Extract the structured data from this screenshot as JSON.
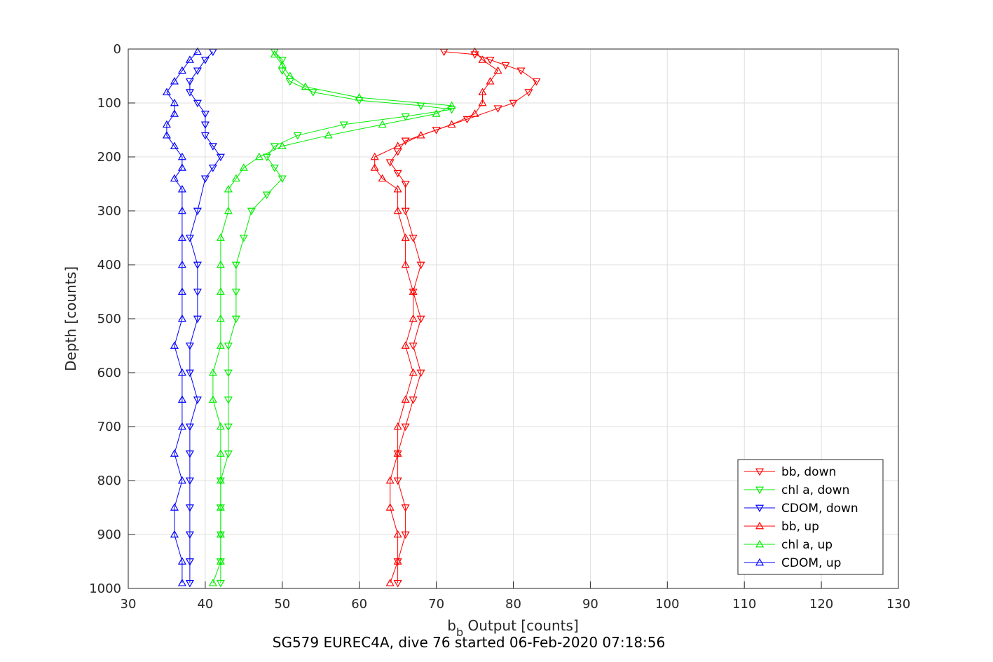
{
  "chart_data": {
    "type": "line",
    "title": "",
    "caption": "SG579 EUREC4A, dive 76 started 06-Feb-2020 07:18:56",
    "xlabel_main": "b",
    "xlabel_sub": "b",
    "xlabel_rest": " Output [counts]",
    "ylabel": "Depth [counts]",
    "xlim": [
      30,
      130
    ],
    "ylim": [
      0,
      1000
    ],
    "y_reversed": true,
    "xticks": [
      30,
      40,
      50,
      60,
      70,
      80,
      90,
      100,
      110,
      120,
      130
    ],
    "yticks": [
      0,
      100,
      200,
      300,
      400,
      500,
      600,
      700,
      800,
      900,
      1000
    ],
    "grid": true,
    "legend_position": "bottom-right",
    "colors": {
      "red": "#ff0000",
      "green": "#00ee00",
      "blue": "#0000ff"
    },
    "series": [
      {
        "name": "bb, down",
        "color": "#ff0000",
        "marker": "triangle-down",
        "points": [
          [
            71,
            5
          ],
          [
            75,
            10
          ],
          [
            77,
            20
          ],
          [
            79,
            30
          ],
          [
            81,
            40
          ],
          [
            83,
            60
          ],
          [
            82,
            80
          ],
          [
            80,
            100
          ],
          [
            78,
            110
          ],
          [
            74,
            130
          ],
          [
            70,
            150
          ],
          [
            66,
            170
          ],
          [
            65,
            190
          ],
          [
            64,
            210
          ],
          [
            65,
            230
          ],
          [
            66,
            250
          ],
          [
            66,
            300
          ],
          [
            67,
            350
          ],
          [
            68,
            400
          ],
          [
            67,
            450
          ],
          [
            68,
            500
          ],
          [
            67,
            550
          ],
          [
            68,
            600
          ],
          [
            67,
            650
          ],
          [
            66,
            700
          ],
          [
            65,
            750
          ],
          [
            65,
            800
          ],
          [
            66,
            850
          ],
          [
            66,
            900
          ],
          [
            65,
            950
          ],
          [
            65,
            990
          ]
        ]
      },
      {
        "name": "chl a, down",
        "color": "#00ee00",
        "marker": "triangle-down",
        "points": [
          [
            49,
            5
          ],
          [
            50,
            20
          ],
          [
            50,
            40
          ],
          [
            51,
            60
          ],
          [
            54,
            80
          ],
          [
            60,
            95
          ],
          [
            68,
            105
          ],
          [
            72,
            112
          ],
          [
            66,
            125
          ],
          [
            58,
            140
          ],
          [
            52,
            160
          ],
          [
            49,
            180
          ],
          [
            48,
            200
          ],
          [
            49,
            220
          ],
          [
            50,
            240
          ],
          [
            48,
            270
          ],
          [
            46,
            300
          ],
          [
            45,
            350
          ],
          [
            44,
            400
          ],
          [
            44,
            450
          ],
          [
            44,
            500
          ],
          [
            43,
            550
          ],
          [
            43,
            600
          ],
          [
            43,
            650
          ],
          [
            43,
            700
          ],
          [
            43,
            750
          ],
          [
            42,
            800
          ],
          [
            42,
            850
          ],
          [
            42,
            900
          ],
          [
            42,
            950
          ],
          [
            42,
            990
          ]
        ]
      },
      {
        "name": "CDOM, down",
        "color": "#0000ff",
        "marker": "triangle-down",
        "points": [
          [
            41,
            5
          ],
          [
            40,
            20
          ],
          [
            39,
            40
          ],
          [
            38,
            60
          ],
          [
            38,
            80
          ],
          [
            39,
            100
          ],
          [
            40,
            120
          ],
          [
            40,
            140
          ],
          [
            40,
            160
          ],
          [
            41,
            180
          ],
          [
            42,
            200
          ],
          [
            41,
            220
          ],
          [
            40,
            240
          ],
          [
            39,
            300
          ],
          [
            38,
            350
          ],
          [
            39,
            400
          ],
          [
            39,
            450
          ],
          [
            39,
            500
          ],
          [
            38,
            550
          ],
          [
            38,
            600
          ],
          [
            39,
            650
          ],
          [
            38,
            700
          ],
          [
            38,
            750
          ],
          [
            38,
            800
          ],
          [
            38,
            850
          ],
          [
            38,
            900
          ],
          [
            38,
            950
          ],
          [
            38,
            990
          ]
        ]
      },
      {
        "name": "bb, up",
        "color": "#ff0000",
        "marker": "triangle-up",
        "points": [
          [
            64,
            990
          ],
          [
            65,
            950
          ],
          [
            65,
            900
          ],
          [
            64,
            850
          ],
          [
            64,
            800
          ],
          [
            65,
            750
          ],
          [
            65,
            700
          ],
          [
            66,
            650
          ],
          [
            67,
            600
          ],
          [
            66,
            550
          ],
          [
            67,
            500
          ],
          [
            67,
            450
          ],
          [
            66,
            400
          ],
          [
            66,
            350
          ],
          [
            65,
            300
          ],
          [
            65,
            260
          ],
          [
            63,
            240
          ],
          [
            62,
            220
          ],
          [
            62,
            200
          ],
          [
            65,
            180
          ],
          [
            68,
            160
          ],
          [
            72,
            140
          ],
          [
            75,
            120
          ],
          [
            76,
            100
          ],
          [
            76,
            80
          ],
          [
            77,
            60
          ],
          [
            78,
            40
          ],
          [
            76,
            20
          ],
          [
            75,
            5
          ]
        ]
      },
      {
        "name": "chl a, up",
        "color": "#00ee00",
        "marker": "triangle-up",
        "points": [
          [
            41,
            990
          ],
          [
            42,
            950
          ],
          [
            42,
            900
          ],
          [
            42,
            850
          ],
          [
            42,
            800
          ],
          [
            42,
            750
          ],
          [
            42,
            700
          ],
          [
            41,
            650
          ],
          [
            41,
            600
          ],
          [
            42,
            550
          ],
          [
            42,
            500
          ],
          [
            42,
            450
          ],
          [
            42,
            400
          ],
          [
            42,
            350
          ],
          [
            43,
            300
          ],
          [
            43,
            260
          ],
          [
            44,
            240
          ],
          [
            45,
            220
          ],
          [
            47,
            200
          ],
          [
            50,
            180
          ],
          [
            56,
            160
          ],
          [
            63,
            140
          ],
          [
            70,
            120
          ],
          [
            72,
            105
          ],
          [
            60,
            90
          ],
          [
            53,
            70
          ],
          [
            51,
            50
          ],
          [
            50,
            30
          ],
          [
            49,
            10
          ]
        ]
      },
      {
        "name": "CDOM, up",
        "color": "#0000ff",
        "marker": "triangle-up",
        "points": [
          [
            37,
            990
          ],
          [
            37,
            950
          ],
          [
            36,
            900
          ],
          [
            36,
            850
          ],
          [
            37,
            800
          ],
          [
            36,
            750
          ],
          [
            37,
            700
          ],
          [
            37,
            650
          ],
          [
            37,
            600
          ],
          [
            36,
            550
          ],
          [
            37,
            500
          ],
          [
            37,
            450
          ],
          [
            37,
            400
          ],
          [
            37,
            350
          ],
          [
            37,
            300
          ],
          [
            37,
            260
          ],
          [
            36,
            240
          ],
          [
            37,
            220
          ],
          [
            37,
            200
          ],
          [
            36,
            180
          ],
          [
            35,
            160
          ],
          [
            35,
            140
          ],
          [
            36,
            120
          ],
          [
            36,
            100
          ],
          [
            35,
            80
          ],
          [
            36,
            60
          ],
          [
            37,
            40
          ],
          [
            38,
            20
          ],
          [
            39,
            5
          ]
        ]
      }
    ]
  }
}
